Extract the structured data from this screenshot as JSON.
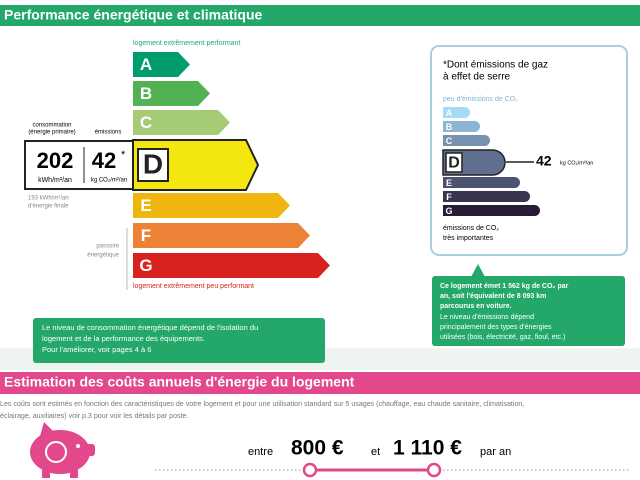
{
  "header": {
    "title": "Performance énergétique et climatique"
  },
  "energy": {
    "top_label": "logement extrêmement performant",
    "bottom_label": "logement extrêmement peu performant",
    "classes": [
      "A",
      "B",
      "C",
      "D",
      "E",
      "F",
      "G"
    ],
    "consumption_label": [
      "consommation",
      "(énergie primaire)"
    ],
    "emissions_label": "émissions",
    "consumption_value": "202",
    "consumption_unit": "kWh/m²/an",
    "emissions_value": "42",
    "emissions_star": "*",
    "emissions_unit": "kg CO₂/m²/an",
    "final_energy": [
      "193 kWh/m²/an",
      "d'énergie finale"
    ],
    "passoire": [
      "passoire",
      "énergétique"
    ],
    "note": [
      "Le niveau de consommation énergétique dépend de l'isolation du",
      "logement et de la performance des équipements.",
      "Pour l'améliorer, voir pages 4 à 6"
    ]
  },
  "ghg": {
    "note": [
      "*Dont émissions de gaz",
      "à effet de serre"
    ],
    "top_label": "peu d'émissions de CO₂",
    "classes": [
      "A",
      "B",
      "C",
      "D",
      "E",
      "F",
      "G"
    ],
    "value": "42",
    "unit": "kg CO₂/m²/an",
    "bottom_label": [
      "émissions de CO₂",
      "très importantes"
    ],
    "callout": [
      "Ce logement émet 1 562 kg de CO₂ par",
      "an, soit l'équivalent de 8 093 km",
      "parcourus en voiture.",
      "Le niveau d'émissions dépend",
      "principalement des types d'énergies",
      "utilisées (bois, électricité, gaz, fioul, etc.)"
    ]
  },
  "costs": {
    "title": "Estimation des coûts annuels d'énergie du logement",
    "description": [
      "Les coûts sont estimés en fonction des caractéristiques de votre logement et pour une utilisation standard sur 5 usages (chauffage, eau chaude sanitaire, climatisation,",
      "éclairage, auxiliaires) voir p.3 pour voir les détails par poste."
    ],
    "from_label": "entre",
    "low": "800 €",
    "and_label": "et",
    "high": "1 110 €",
    "per_year": "par an"
  }
}
